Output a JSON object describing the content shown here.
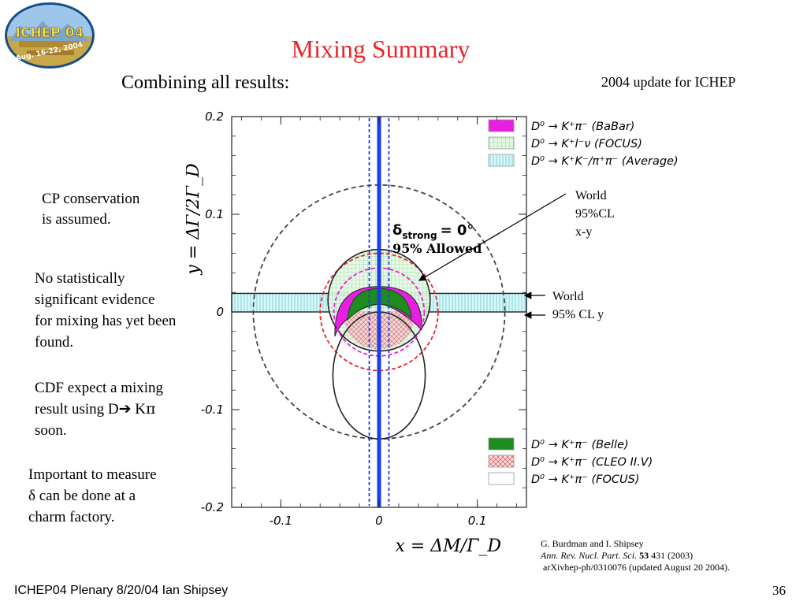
{
  "slide": {
    "title": "Mixing Summary",
    "subtitle": "Combining all results:",
    "update_note": "2004 update for ICHEP",
    "footer": "ICHEP04 Plenary 8/20/04 Ian Shipsey",
    "page_number": "36",
    "logo": {
      "text": "ICHEP 04",
      "subtext": "Aug. 16-22, 2004",
      "colors": {
        "ring": "#1f5f9e",
        "sky": "#9cc7ea",
        "land": "#c8a64a"
      }
    }
  },
  "notes": {
    "cp": [
      "CP conservation",
      "is assumed."
    ],
    "evidence": [
      "No statistically",
      "significant evidence",
      "for mixing has yet been",
      "found."
    ],
    "cdf": [
      "CDF expect a mixing",
      "result using D",
      "K",
      "soon."
    ],
    "measure": [
      "Important to measure",
      "δ can be done at a",
      "charm factory."
    ]
  },
  "annotations": {
    "world_xy": [
      "World",
      "95%CL",
      "x-y"
    ],
    "world_y": [
      "World",
      "95% CL y"
    ]
  },
  "reference": {
    "authors": "G. Burdman and I. Shipsey",
    "journal": "Ann. Rev. Nucl. Part. Sci",
    "sep": ". ",
    "volume": "53",
    "pages": " 431 (2003)",
    "arxiv": "arXivhep-ph/0310076 (updated  August 20 2004)."
  },
  "chart_data": {
    "type": "scatter",
    "xlabel": "x = ΔM/Γ_D",
    "ylabel": "y = ΔΓ/2Γ_D",
    "xlim": [
      -0.15,
      0.15
    ],
    "ylim": [
      -0.2,
      0.2
    ],
    "x_ticks": [
      "-0.1",
      "0",
      "0.1"
    ],
    "y_ticks": [
      "0.2",
      "0.1",
      "0",
      "-0.1",
      "-0.2"
    ],
    "x_tick_values": [
      -0.1,
      0,
      0.1
    ],
    "y_tick_values": [
      0.2,
      0.1,
      0,
      -0.1,
      -0.2
    ],
    "legend_top": [
      {
        "label": "D⁰ → K⁺π⁻ (BaBar)",
        "fill": "#e81ee0"
      },
      {
        "label": "D⁰ → K⁺l⁻ν (FOCUS)",
        "fill": "#d6f5d6"
      },
      {
        "label": "D⁰ → K⁺K⁻/π⁺π⁻ (Average)",
        "fill": "#c9f4f6"
      }
    ],
    "legend_bottom": [
      {
        "label": "D⁰ → K⁺π⁻ (Belle)",
        "fill": "#1e8c1e"
      },
      {
        "label": "D⁰ → K⁺π⁻ (CLEO II.V)",
        "fill": "#f6b9b9"
      },
      {
        "label": "D⁰ → K⁺π⁻ (FOCUS)",
        "fill": "#ffffff"
      }
    ],
    "allowed_label": {
      "symbol": "δ",
      "subscript": "strong",
      "value": "= 0°",
      "line2": "95% Allowed"
    },
    "bands": {
      "y_band": {
        "ymin": 0.0,
        "ymax": 0.019,
        "color": "#c9f4f6",
        "label": "World 95% CL y"
      },
      "x_line": {
        "x": 0.0,
        "color": "#1a3cf0"
      },
      "x_band_dashed": {
        "xmin": -0.01,
        "xmax": 0.01,
        "color": "#1a3cf0"
      }
    },
    "contours": [
      {
        "name": "World 95%CL x-y",
        "cx": 0.0,
        "cy": 0.0,
        "rx": 0.128,
        "ry": 0.13,
        "style": "dashed",
        "color": "#444444"
      },
      {
        "name": "CLEO II.V",
        "cx": 0.0,
        "cy": 0.0,
        "rx": 0.06,
        "ry": 0.06,
        "style": "dashed",
        "color": "#e8262a"
      },
      {
        "name": "FOCUS K+pi-",
        "cx": 0.0,
        "cy": -0.065,
        "rx": 0.047,
        "ry": 0.065,
        "style": "solid",
        "color": "#222222"
      },
      {
        "name": "FOCUS semileptonic",
        "cx": 0.0,
        "cy": 0.012,
        "rx": 0.052,
        "ry": 0.052,
        "style": "solid",
        "color": "#222222"
      },
      {
        "name": "BaBar",
        "cx": 0.0,
        "cy": 0.0,
        "rx": 0.046,
        "ry": 0.045,
        "style": "dashed",
        "color": "#e81ee0"
      }
    ],
    "regions": [
      {
        "name": "BaBar allowed",
        "color": "#e81ee0"
      },
      {
        "name": "Belle allowed",
        "color": "#1e8c1e"
      },
      {
        "name": "CLEO II.V allowed",
        "color": "#f6b9b9"
      }
    ]
  }
}
